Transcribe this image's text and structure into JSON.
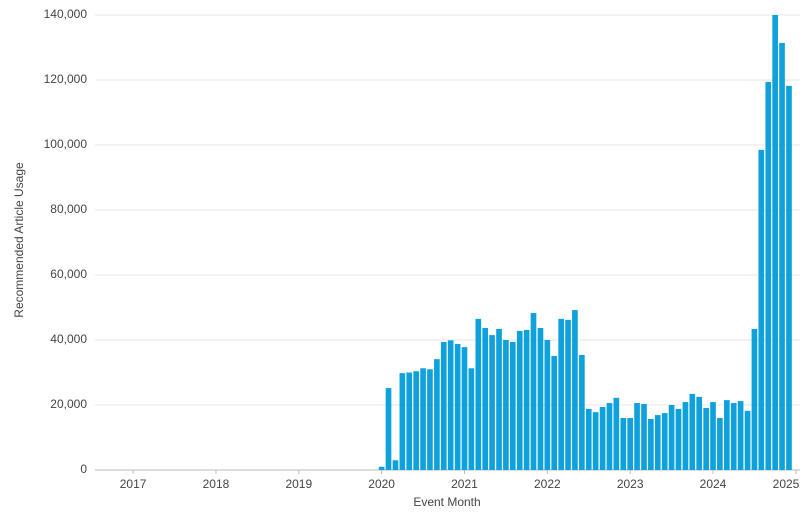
{
  "chart_data": {
    "type": "bar",
    "x_label": "Event Month",
    "y_label": "Recommended Article Usage",
    "color": "#0ea1db",
    "grid": true,
    "xlim": [
      2016.54,
      2025.05
    ],
    "xticks": [
      2017,
      2018,
      2019,
      2020,
      2021,
      2022,
      2023,
      2024,
      2025
    ],
    "ylim": [
      0,
      140000
    ],
    "yticks": [
      0,
      {
        "value": 20000,
        "label": "20,000"
      },
      {
        "value": 40000,
        "label": "40,000"
      },
      {
        "value": 60000,
        "label": "60,000"
      },
      {
        "value": 80000,
        "label": "80,000"
      },
      {
        "value": 100000,
        "label": "100,000"
      },
      {
        "value": 120000,
        "label": "120,000"
      },
      {
        "value": 140000,
        "label": "140,000"
      }
    ],
    "x": [
      2020.0,
      2020.083,
      2020.167,
      2020.25,
      2020.333,
      2020.417,
      2020.5,
      2020.583,
      2020.667,
      2020.75,
      2020.833,
      2020.917,
      2021.0,
      2021.083,
      2021.167,
      2021.25,
      2021.333,
      2021.417,
      2021.5,
      2021.583,
      2021.667,
      2021.75,
      2021.833,
      2021.917,
      2022.0,
      2022.083,
      2022.167,
      2022.25,
      2022.333,
      2022.417,
      2022.5,
      2022.583,
      2022.667,
      2022.75,
      2022.833,
      2022.917,
      2023.0,
      2023.083,
      2023.167,
      2023.25,
      2023.333,
      2023.417,
      2023.5,
      2023.583,
      2023.667,
      2023.75,
      2023.833,
      2023.917,
      2024.0,
      2024.083,
      2024.167,
      2024.25,
      2024.333,
      2024.417,
      2024.5,
      2024.583,
      2024.667,
      2024.75,
      2024.833,
      2024.917
    ],
    "values": [
      1000,
      25200,
      3000,
      29800,
      30000,
      30400,
      31300,
      31000,
      34100,
      39400,
      39900,
      38800,
      37800,
      31300,
      46500,
      43700,
      41500,
      43400,
      40000,
      39400,
      42800,
      43100,
      48300,
      43700,
      40000,
      35100,
      46500,
      46200,
      49200,
      35400,
      18800,
      17800,
      19400,
      20600,
      22200,
      16000,
      16000,
      20600,
      20300,
      15700,
      16900,
      17500,
      20000,
      18800,
      20900,
      23400,
      22500,
      19100,
      20900,
      16000,
      21500,
      20600,
      21200,
      18200,
      43400,
      98500,
      119400,
      140000,
      131400,
      118200
    ]
  }
}
